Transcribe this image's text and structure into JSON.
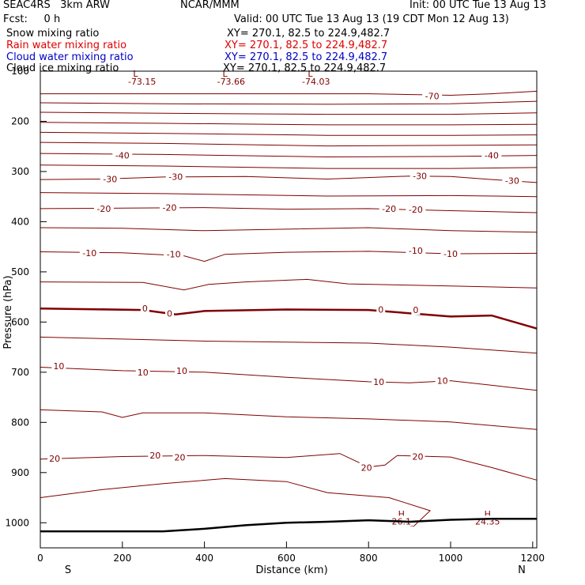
{
  "header": {
    "model": "SEAC4RS   3km ARW",
    "org": "NCAR/MMM",
    "init": "Init: 00 UTC Tue 13 Aug 13",
    "fcst": "Fcst:     0 h",
    "valid": "Valid: 00 UTC Tue 13 Aug 13 (19 CDT Mon 12 Aug 13)"
  },
  "legend": [
    {
      "label": "Snow mixing ratio",
      "xy": "XY= 270.1, 82.5 to 224.9,482.7",
      "color": "#000000"
    },
    {
      "label": "Rain water mixing ratio",
      "xy": "XY= 270.1, 82.5 to 224.9,482.7",
      "color": "#e00000"
    },
    {
      "label": "Cloud water mixing ratio",
      "xy": "XY= 270.1, 82.5 to 224.9,482.7",
      "color": "#0000c8"
    },
    {
      "label": "Cloud ice mixing ratio",
      "xy": "XY= 270.1, 82.5 to 224.9,482.7",
      "color": "#000000"
    }
  ],
  "chart_data": {
    "type": "contour",
    "xlabel": "Distance (km)",
    "ylabel": "Pressure (hPa)",
    "xlim": [
      0,
      1210
    ],
    "ylim": [
      100,
      1050
    ],
    "x_ticks": [
      0,
      200,
      400,
      600,
      800,
      1000,
      1200
    ],
    "y_ticks": [
      100,
      200,
      300,
      400,
      500,
      600,
      700,
      800,
      900,
      1000
    ],
    "x_endpoints": {
      "left": "S",
      "right": "N"
    },
    "contour_color": "#800000",
    "contour_levels": [
      {
        "level": -70,
        "labels": [
          {
            "text": "-70",
            "x": 955,
            "p": 150
          }
        ],
        "points": [
          [
            0,
            145
          ],
          [
            400,
            145
          ],
          [
            800,
            145
          ],
          [
            1000,
            148
          ],
          [
            1100,
            145
          ],
          [
            1210,
            140
          ]
        ]
      },
      {
        "level": -65,
        "labels": [],
        "points": [
          [
            0,
            163
          ],
          [
            300,
            165
          ],
          [
            700,
            166
          ],
          [
            1000,
            165
          ],
          [
            1210,
            160
          ]
        ]
      },
      {
        "level": -60,
        "labels": [],
        "points": [
          [
            0,
            182
          ],
          [
            300,
            184
          ],
          [
            700,
            186
          ],
          [
            1000,
            186
          ],
          [
            1210,
            183
          ]
        ]
      },
      {
        "level": -55,
        "labels": [],
        "points": [
          [
            0,
            202
          ],
          [
            300,
            204
          ],
          [
            700,
            207
          ],
          [
            1000,
            207
          ],
          [
            1210,
            206
          ]
        ]
      },
      {
        "level": -50,
        "labels": [],
        "points": [
          [
            0,
            222
          ],
          [
            300,
            224
          ],
          [
            700,
            228
          ],
          [
            1000,
            228
          ],
          [
            1210,
            227
          ]
        ]
      },
      {
        "level": -45,
        "labels": [],
        "points": [
          [
            0,
            242
          ],
          [
            300,
            244
          ],
          [
            700,
            249
          ],
          [
            1000,
            248
          ],
          [
            1210,
            247
          ]
        ]
      },
      {
        "level": -40,
        "labels": [
          {
            "text": "-40",
            "x": 200,
            "p": 268
          },
          {
            "text": "-40",
            "x": 1100,
            "p": 268
          }
        ],
        "points": [
          [
            0,
            264
          ],
          [
            300,
            266
          ],
          [
            700,
            271
          ],
          [
            1000,
            270
          ],
          [
            1210,
            268
          ]
        ]
      },
      {
        "level": -35,
        "labels": [],
        "points": [
          [
            0,
            287
          ],
          [
            300,
            289
          ],
          [
            700,
            294
          ],
          [
            1000,
            294
          ],
          [
            1210,
            292
          ]
        ]
      },
      {
        "level": -30,
        "labels": [
          {
            "text": "-30",
            "x": 170,
            "p": 315
          },
          {
            "text": "-30",
            "x": 330,
            "p": 310
          },
          {
            "text": "-30",
            "x": 925,
            "p": 309
          },
          {
            "text": "-30",
            "x": 1150,
            "p": 318
          }
        ],
        "points": [
          [
            0,
            316
          ],
          [
            150,
            315
          ],
          [
            300,
            311
          ],
          [
            500,
            310
          ],
          [
            700,
            315
          ],
          [
            900,
            309
          ],
          [
            1000,
            310
          ],
          [
            1100,
            316
          ],
          [
            1210,
            322
          ]
        ]
      },
      {
        "level": -25,
        "labels": [],
        "points": [
          [
            0,
            342
          ],
          [
            300,
            344
          ],
          [
            700,
            349
          ],
          [
            1000,
            348
          ],
          [
            1210,
            350
          ]
        ]
      },
      {
        "level": -20,
        "labels": [
          {
            "text": "-20",
            "x": 155,
            "p": 374
          },
          {
            "text": "-20",
            "x": 315,
            "p": 372
          },
          {
            "text": "-20",
            "x": 850,
            "p": 374
          },
          {
            "text": "-20",
            "x": 915,
            "p": 376
          }
        ],
        "points": [
          [
            0,
            374
          ],
          [
            200,
            373
          ],
          [
            400,
            372
          ],
          [
            600,
            375
          ],
          [
            800,
            374
          ],
          [
            1000,
            378
          ],
          [
            1210,
            382
          ]
        ]
      },
      {
        "level": -15,
        "labels": [],
        "points": [
          [
            0,
            412
          ],
          [
            200,
            413
          ],
          [
            400,
            418
          ],
          [
            600,
            415
          ],
          [
            800,
            412
          ],
          [
            1000,
            418
          ],
          [
            1210,
            421
          ]
        ]
      },
      {
        "level": -10,
        "labels": [
          {
            "text": "-10",
            "x": 120,
            "p": 462
          },
          {
            "text": "-10",
            "x": 325,
            "p": 465
          },
          {
            "text": "-10",
            "x": 915,
            "p": 458
          },
          {
            "text": "-10",
            "x": 1000,
            "p": 464
          }
        ],
        "points": [
          [
            0,
            460
          ],
          [
            200,
            462
          ],
          [
            350,
            468
          ],
          [
            400,
            479
          ],
          [
            450,
            465
          ],
          [
            600,
            461
          ],
          [
            800,
            459
          ],
          [
            1000,
            464
          ],
          [
            1210,
            463
          ]
        ]
      },
      {
        "level": -5,
        "labels": [],
        "points": [
          [
            0,
            520
          ],
          [
            250,
            521
          ],
          [
            350,
            536
          ],
          [
            410,
            525
          ],
          [
            500,
            520
          ],
          [
            650,
            515
          ],
          [
            750,
            524
          ],
          [
            1000,
            528
          ],
          [
            1210,
            532
          ]
        ]
      },
      {
        "level": 0,
        "labels": [
          {
            "text": "0",
            "x": 255,
            "p": 573
          },
          {
            "text": "0",
            "x": 315,
            "p": 583
          },
          {
            "text": "0",
            "x": 830,
            "p": 575
          },
          {
            "text": "0",
            "x": 915,
            "p": 576
          }
        ],
        "points": [
          [
            0,
            573
          ],
          [
            250,
            576
          ],
          [
            330,
            585
          ],
          [
            400,
            578
          ],
          [
            600,
            575
          ],
          [
            800,
            576
          ],
          [
            1000,
            589
          ],
          [
            1100,
            587
          ],
          [
            1210,
            613
          ]
        ],
        "bold": true
      },
      {
        "level": 5,
        "labels": [],
        "points": [
          [
            0,
            630
          ],
          [
            200,
            634
          ],
          [
            400,
            638
          ],
          [
            600,
            640
          ],
          [
            800,
            642
          ],
          [
            1000,
            650
          ],
          [
            1210,
            662
          ]
        ]
      },
      {
        "level": 10,
        "labels": [
          {
            "text": "10",
            "x": 45,
            "p": 688
          },
          {
            "text": "10",
            "x": 250,
            "p": 700
          },
          {
            "text": "10",
            "x": 345,
            "p": 697
          },
          {
            "text": "10",
            "x": 825,
            "p": 719
          },
          {
            "text": "10",
            "x": 980,
            "p": 717
          }
        ],
        "points": [
          [
            0,
            690
          ],
          [
            200,
            697
          ],
          [
            400,
            700
          ],
          [
            600,
            710
          ],
          [
            800,
            719
          ],
          [
            900,
            721
          ],
          [
            1000,
            717
          ],
          [
            1210,
            736
          ]
        ]
      },
      {
        "level": 15,
        "labels": [],
        "points": [
          [
            0,
            775
          ],
          [
            150,
            779
          ],
          [
            200,
            790
          ],
          [
            250,
            781
          ],
          [
            400,
            781
          ],
          [
            600,
            789
          ],
          [
            800,
            793
          ],
          [
            1000,
            799
          ],
          [
            1210,
            814
          ]
        ]
      },
      {
        "level": 20,
        "labels": [
          {
            "text": "20",
            "x": 35,
            "p": 872
          },
          {
            "text": "20",
            "x": 280,
            "p": 866
          },
          {
            "text": "20",
            "x": 340,
            "p": 870
          },
          {
            "text": "20",
            "x": 795,
            "p": 890
          },
          {
            "text": "20",
            "x": 920,
            "p": 868
          }
        ],
        "points": [
          [
            0,
            873
          ],
          [
            200,
            868
          ],
          [
            400,
            866
          ],
          [
            600,
            870
          ],
          [
            730,
            862
          ],
          [
            800,
            889
          ],
          [
            840,
            885
          ],
          [
            870,
            866
          ],
          [
            1000,
            869
          ],
          [
            1100,
            890
          ],
          [
            1210,
            915
          ]
        ]
      },
      {
        "level": 25,
        "labels": [
          {
            "text": "H",
            "x": 880,
            "p": 982
          },
          {
            "text": "26.1",
            "x": 880,
            "p": 997
          },
          {
            "text": "H",
            "x": 1090,
            "p": 982
          },
          {
            "text": "24.35",
            "x": 1090,
            "p": 997
          }
        ],
        "points": [
          [
            0,
            950
          ],
          [
            150,
            934
          ],
          [
            300,
            922
          ],
          [
            450,
            912
          ],
          [
            600,
            918
          ],
          [
            700,
            940
          ],
          [
            850,
            950
          ],
          [
            950,
            976
          ],
          [
            910,
            1007
          ],
          [
            850,
            1000
          ]
        ]
      }
    ],
    "annotations": [
      {
        "text": "L",
        "x": 232,
        "p": 111
      },
      {
        "text": "-73.15",
        "x": 248,
        "p": 127
      },
      {
        "text": "L",
        "x": 450,
        "p": 111
      },
      {
        "text": "-73.66",
        "x": 465,
        "p": 127
      },
      {
        "text": "L",
        "x": 658,
        "p": 111
      },
      {
        "text": "-74.03",
        "x": 672,
        "p": 127
      }
    ],
    "terrain": [
      [
        0,
        1017
      ],
      [
        300,
        1017
      ],
      [
        400,
        1012
      ],
      [
        500,
        1005
      ],
      [
        600,
        1000
      ],
      [
        700,
        998
      ],
      [
        800,
        995
      ],
      [
        900,
        998
      ],
      [
        1000,
        994
      ],
      [
        1100,
        992
      ],
      [
        1210,
        992
      ]
    ]
  }
}
